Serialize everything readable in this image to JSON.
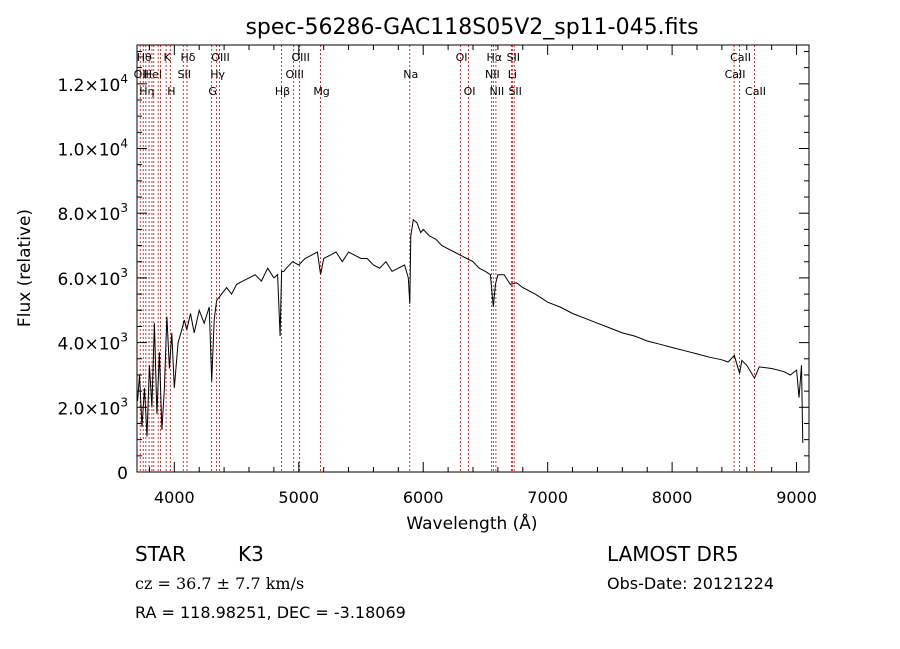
{
  "chart_data": {
    "type": "line",
    "title": "spec-56286-GAC118S05V2_sp11-045.fits",
    "xlabel": "Wavelength (Å)",
    "ylabel": "Flux (relative)",
    "xlim": [
      3700,
      9100
    ],
    "ylim": [
      0,
      13200
    ],
    "xticks": [
      {
        "value": 4000,
        "label": "4000"
      },
      {
        "value": 5000,
        "label": "5000"
      },
      {
        "value": 6000,
        "label": "6000"
      },
      {
        "value": 7000,
        "label": "7000"
      },
      {
        "value": 8000,
        "label": "8000"
      },
      {
        "value": 9000,
        "label": "9000"
      }
    ],
    "yticks": [
      {
        "value": 0,
        "mantissa": "0",
        "exp": ""
      },
      {
        "value": 2000,
        "mantissa": "2.0×10",
        "exp": "3"
      },
      {
        "value": 4000,
        "mantissa": "4.0×10",
        "exp": "3"
      },
      {
        "value": 6000,
        "mantissa": "6.0×10",
        "exp": "3"
      },
      {
        "value": 8000,
        "mantissa": "8.0×10",
        "exp": "3"
      },
      {
        "value": 10000,
        "mantissa": "1.0×10",
        "exp": "4"
      },
      {
        "value": 12000,
        "mantissa": "1.2×10",
        "exp": "4"
      }
    ],
    "series": [
      {
        "color": "#000000",
        "x": [
          3705,
          3720,
          3740,
          3760,
          3780,
          3800,
          3820,
          3840,
          3860,
          3880,
          3900,
          3920,
          3940,
          3960,
          3980,
          4000,
          4030,
          4060,
          4080,
          4100,
          4130,
          4160,
          4200,
          4240,
          4280,
          4300,
          4320,
          4340,
          4380,
          4420,
          4460,
          4500,
          4550,
          4600,
          4650,
          4700,
          4750,
          4800,
          4830,
          4850,
          4862,
          4880,
          4900,
          4950,
          5000,
          5050,
          5100,
          5150,
          5175,
          5200,
          5250,
          5300,
          5350,
          5400,
          5450,
          5500,
          5550,
          5600,
          5650,
          5700,
          5750,
          5800,
          5850,
          5880,
          5892,
          5900,
          5920,
          5950,
          5980,
          6000,
          6050,
          6100,
          6150,
          6200,
          6250,
          6300,
          6350,
          6400,
          6450,
          6500,
          6540,
          6563,
          6580,
          6600,
          6650,
          6700,
          6750,
          6800,
          6900,
          7000,
          7100,
          7200,
          7300,
          7400,
          7500,
          7600,
          7700,
          7800,
          7900,
          8000,
          8100,
          8200,
          8300,
          8400,
          8450,
          8500,
          8542,
          8560,
          8600,
          8662,
          8700,
          8800,
          8900,
          8950,
          9000,
          9020,
          9040,
          9050
        ],
        "y": [
          2200,
          3000,
          1400,
          2600,
          1100,
          3300,
          2000,
          4600,
          1800,
          3700,
          1300,
          2600,
          4800,
          3200,
          4300,
          2600,
          4000,
          4400,
          4700,
          4400,
          4900,
          4300,
          5000,
          4600,
          5100,
          2800,
          4700,
          5300,
          5500,
          5700,
          5500,
          5800,
          5900,
          6000,
          6100,
          5900,
          6300,
          6000,
          6100,
          4200,
          6200,
          6200,
          6300,
          6500,
          6400,
          6600,
          6700,
          6800,
          6100,
          6600,
          6700,
          6800,
          6500,
          6800,
          6700,
          6600,
          6600,
          6400,
          6300,
          6500,
          6200,
          6300,
          6400,
          6000,
          5200,
          7300,
          7800,
          7700,
          7400,
          7500,
          7300,
          7200,
          7000,
          6900,
          6800,
          6700,
          6600,
          6500,
          6300,
          6200,
          6100,
          5100,
          5800,
          6100,
          6100,
          5800,
          5850,
          5700,
          5500,
          5250,
          5100,
          4900,
          4750,
          4600,
          4450,
          4300,
          4200,
          4050,
          3950,
          3850,
          3750,
          3650,
          3550,
          3470,
          3400,
          3600,
          3050,
          3450,
          3300,
          2900,
          3250,
          3200,
          3100,
          3000,
          3150,
          2300,
          3300,
          900
        ]
      }
    ],
    "lines": [
      {
        "w": 3726,
        "label": "OII",
        "row": 1
      },
      {
        "w": 3750,
        "label": "Hθ",
        "row": 0
      },
      {
        "w": 3771,
        "label": "Hη",
        "row": 2
      },
      {
        "w": 3797,
        "label": "",
        "row": 0
      },
      {
        "w": 3820,
        "label": "HeI",
        "row": 1
      },
      {
        "w": 3835,
        "label": "",
        "row": 0
      },
      {
        "w": 3870,
        "label": "",
        "row": 0
      },
      {
        "w": 3889,
        "label": "",
        "row": 0
      },
      {
        "w": 3934,
        "label": "K",
        "row": 0
      },
      {
        "w": 3968,
        "label": "H",
        "row": 2
      },
      {
        "w": 4072,
        "label": "SII",
        "row": 1
      },
      {
        "w": 4102,
        "label": "Hδ",
        "row": 0
      },
      {
        "w": 4300,
        "label": "G",
        "row": 2
      },
      {
        "w": 4340,
        "label": "Hγ",
        "row": 1
      },
      {
        "w": 4363,
        "label": "OIII",
        "row": 0
      },
      {
        "w": 4861,
        "label": "Hβ",
        "row": 2
      },
      {
        "w": 4959,
        "label": "OIII",
        "row": 1
      },
      {
        "w": 5007,
        "label": "OIII",
        "row": 0
      },
      {
        "w": 5175,
        "label": "Mg",
        "row": 2
      },
      {
        "w": 5892,
        "label": "Na",
        "row": 1
      },
      {
        "w": 6300,
        "label": "OI",
        "row": 0
      },
      {
        "w": 6364,
        "label": "OI",
        "row": 2
      },
      {
        "w": 6548,
        "label": "NII",
        "row": 1
      },
      {
        "w": 6563,
        "label": "Hα",
        "row": 0
      },
      {
        "w": 6584,
        "label": "NII",
        "row": 2
      },
      {
        "w": 6708,
        "label": "Li",
        "row": 1
      },
      {
        "w": 6716,
        "label": "SII",
        "row": 0
      },
      {
        "w": 6731,
        "label": "SII",
        "row": 2
      },
      {
        "w": 8498,
        "label": "CaII",
        "row": 1
      },
      {
        "w": 8542,
        "label": "CaII",
        "row": 0
      },
      {
        "w": 8662,
        "label": "CaII",
        "row": 2
      }
    ]
  },
  "info": {
    "class": "STAR",
    "subclass": "K3",
    "survey": "LAMOST  DR5",
    "cz": "cz = 36.7 ± 7.7 km/s",
    "obs_date": "Obs-Date: 20121224",
    "coords": "RA = 118.98251, DEC =  -3.18069"
  }
}
